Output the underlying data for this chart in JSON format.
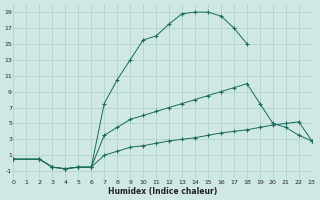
{
  "background_color": "#cfe8e3",
  "grid_color": "#aacfca",
  "line_color": "#1a6b5e",
  "xlim": [
    0,
    23
  ],
  "ylim": [
    -2,
    20
  ],
  "xticks": [
    0,
    1,
    2,
    3,
    4,
    5,
    6,
    7,
    8,
    9,
    10,
    11,
    12,
    13,
    14,
    15,
    16,
    17,
    18,
    19,
    20,
    21,
    22,
    23
  ],
  "yticks": [
    -1,
    1,
    3,
    5,
    7,
    9,
    11,
    13,
    15,
    17,
    19
  ],
  "xlabel": "Humidex (Indice chaleur)",
  "line1_x": [
    0,
    2,
    3,
    4,
    5,
    6,
    7,
    8,
    9,
    10,
    11,
    12,
    13,
    14,
    15,
    16,
    17,
    18
  ],
  "line1_y": [
    0.5,
    0.5,
    -0.5,
    -0.7,
    -0.5,
    -0.5,
    7.5,
    10.5,
    13.0,
    15.5,
    16.0,
    17.5,
    18.8,
    19.0,
    19.0,
    18.5,
    17.0,
    15.0
  ],
  "line2_x": [
    0,
    2,
    3,
    4,
    5,
    6,
    7,
    8,
    9,
    10,
    11,
    12,
    13,
    14,
    15,
    16,
    17,
    18,
    19,
    20,
    21,
    22,
    23
  ],
  "line2_y": [
    0.5,
    0.5,
    -0.5,
    -0.7,
    -0.5,
    -0.5,
    3.5,
    4.5,
    5.5,
    6.0,
    6.5,
    7.0,
    7.5,
    8.0,
    8.5,
    9.0,
    9.5,
    10.0,
    7.5,
    5.0,
    4.5,
    3.5,
    2.8
  ],
  "line3_x": [
    0,
    2,
    3,
    4,
    5,
    6,
    7,
    8,
    9,
    10,
    11,
    12,
    13,
    14,
    15,
    16,
    17,
    18,
    19,
    20,
    21,
    22,
    23
  ],
  "line3_y": [
    0.5,
    0.5,
    -0.5,
    -0.7,
    -0.5,
    -0.5,
    1.0,
    1.5,
    2.0,
    2.2,
    2.5,
    2.8,
    3.0,
    3.2,
    3.5,
    3.8,
    4.0,
    4.2,
    4.5,
    4.8,
    5.0,
    5.2,
    2.8
  ]
}
